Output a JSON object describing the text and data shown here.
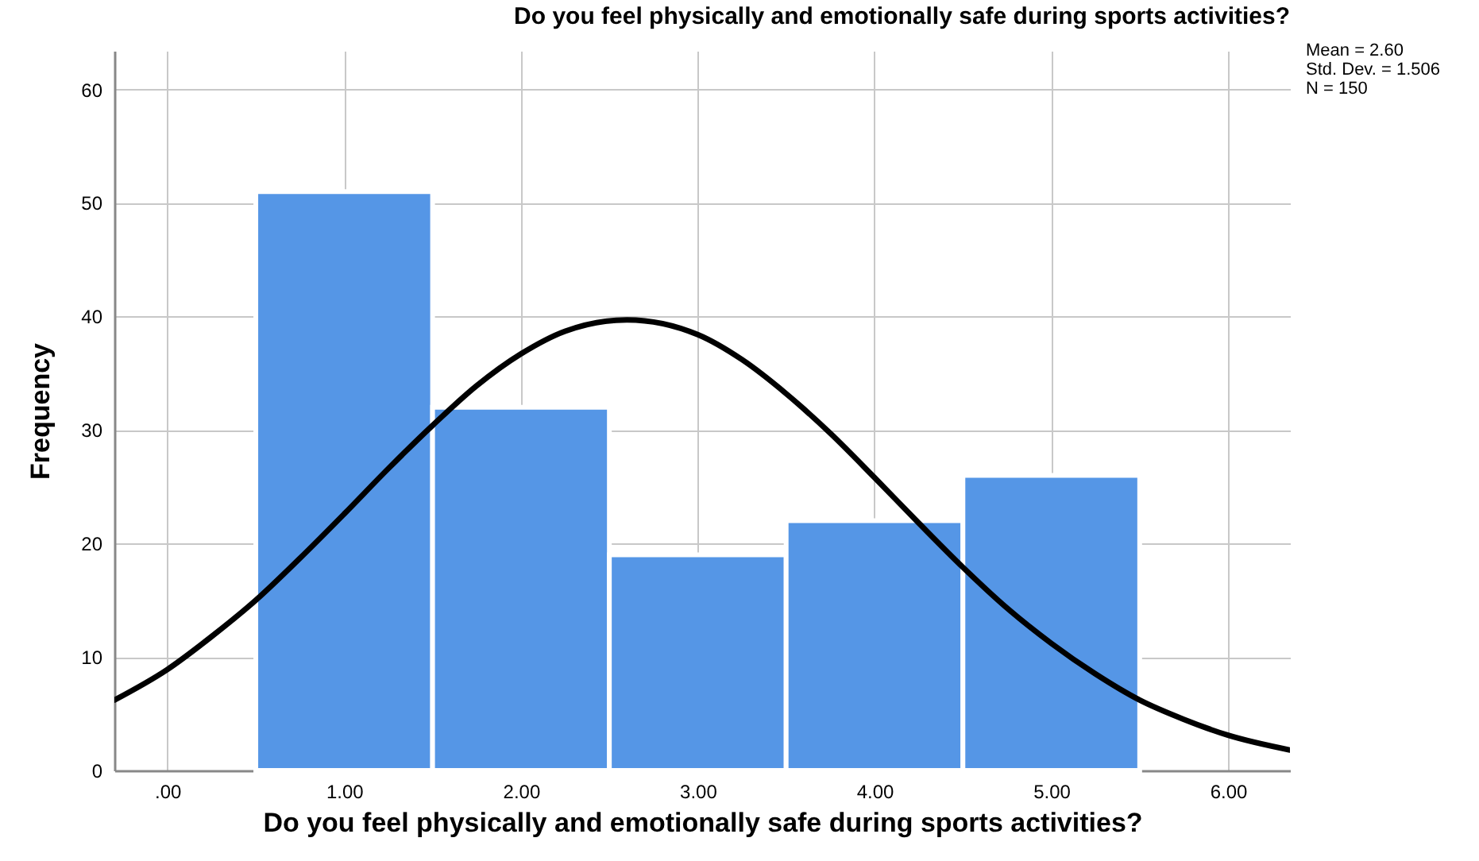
{
  "chart_data": {
    "type": "histogram",
    "title": "Do you feel physically and emotionally safe during sports activities?",
    "xlabel": "Do you feel physically and emotionally safe during sports activities?",
    "ylabel": "Frequency",
    "series": [
      {
        "type": "histogram",
        "bins": [
          0.5,
          1.5,
          2.5,
          3.5,
          4.5,
          5.5
        ],
        "values": [
          51,
          32,
          19,
          22,
          26
        ],
        "color": "#5596e6"
      },
      {
        "type": "line",
        "color": "#000000",
        "x": [
          -0.3,
          0,
          0.25,
          0.5,
          0.75,
          1,
          1.25,
          1.5,
          1.75,
          2,
          2.25,
          2.6,
          3,
          3.25,
          3.5,
          3.75,
          4,
          4.25,
          4.5,
          4.75,
          5,
          5.25,
          5.5,
          5.75,
          6,
          6.35
        ],
        "values": [
          6.2,
          8.9,
          11.8,
          15.0,
          18.7,
          22.6,
          26.6,
          30.4,
          33.9,
          36.7,
          38.7,
          39.7,
          38.4,
          36.2,
          33.2,
          29.7,
          25.8,
          21.8,
          17.9,
          14.3,
          11.2,
          8.5,
          6.2,
          4.5,
          3.1,
          1.8
        ]
      }
    ],
    "xlim": [
      -0.3,
      6.35
    ],
    "xticks": [
      {
        "value": 0,
        "label": ".00"
      },
      {
        "value": 1,
        "label": "1.00"
      },
      {
        "value": 2,
        "label": "2.00"
      },
      {
        "value": 3,
        "label": "3.00"
      },
      {
        "value": 4,
        "label": "4.00"
      },
      {
        "value": 5,
        "label": "5.00"
      },
      {
        "value": 6,
        "label": "6.00"
      }
    ],
    "ylim": [
      0,
      63.4
    ],
    "yticks": [
      0,
      10,
      20,
      30,
      40,
      50,
      60
    ],
    "grid": true,
    "annotations": [
      "Mean = 2.60",
      "Std. Dev. = 1.506",
      "N = 150"
    ]
  }
}
